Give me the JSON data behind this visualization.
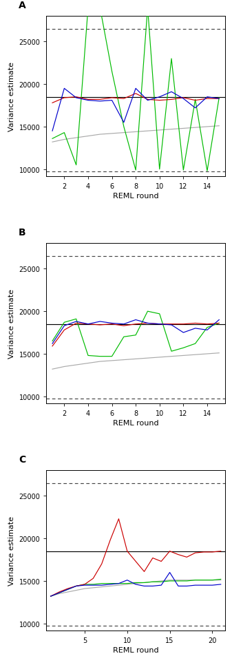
{
  "true_value": 18500,
  "dashed_upper": 26500,
  "dashed_lower": 9700,
  "panel_A": {
    "label": "A",
    "x": [
      1,
      2,
      3,
      4,
      5,
      6,
      7,
      8,
      9,
      10,
      11,
      12,
      13,
      14,
      15
    ],
    "blue": [
      14500,
      19500,
      18400,
      18100,
      18000,
      18100,
      15500,
      19500,
      18100,
      18500,
      19100,
      18300,
      17200,
      18500,
      18300
    ],
    "red": [
      17800,
      18400,
      18500,
      18200,
      18200,
      18400,
      18300,
      18900,
      18200,
      18100,
      18200,
      18400,
      18100,
      18300,
      18300
    ],
    "green": [
      13600,
      14300,
      10500,
      29000,
      29000,
      21500,
      15000,
      9900,
      29000,
      10000,
      23000,
      9900,
      18200,
      9800,
      18400
    ],
    "gray": [
      13200,
      13500,
      13700,
      13900,
      14100,
      14200,
      14300,
      14400,
      14500,
      14600,
      14700,
      14800,
      14900,
      15000,
      15100
    ],
    "xlim": [
      0.5,
      15.5
    ],
    "xticks": [
      2,
      4,
      6,
      8,
      10,
      12,
      14
    ],
    "ylim": [
      9200,
      28000
    ]
  },
  "panel_B": {
    "label": "B",
    "x": [
      1,
      2,
      3,
      4,
      5,
      6,
      7,
      8,
      9,
      10,
      11,
      12,
      13,
      14,
      15
    ],
    "blue": [
      16200,
      18300,
      18800,
      18500,
      18800,
      18600,
      18500,
      19000,
      18600,
      18500,
      18400,
      17500,
      18000,
      17800,
      19000
    ],
    "red": [
      15900,
      17800,
      18600,
      18500,
      18400,
      18500,
      18300,
      18500,
      18600,
      18500,
      18500,
      18500,
      18600,
      18500,
      18600
    ],
    "green": [
      16500,
      18700,
      19100,
      14800,
      14700,
      14700,
      17000,
      17200,
      20000,
      19700,
      15300,
      15700,
      16200,
      18100,
      18600
    ],
    "gray": [
      13200,
      13500,
      13700,
      13900,
      14100,
      14200,
      14300,
      14400,
      14500,
      14600,
      14700,
      14800,
      14900,
      15000,
      15100
    ],
    "xlim": [
      0.5,
      15.5
    ],
    "xticks": [
      2,
      4,
      6,
      8,
      10,
      12,
      14
    ],
    "ylim": [
      9200,
      28000
    ]
  },
  "panel_C": {
    "label": "C",
    "x": [
      1,
      2,
      3,
      4,
      5,
      6,
      7,
      8,
      9,
      10,
      11,
      12,
      13,
      14,
      15,
      16,
      17,
      18,
      19,
      20,
      21
    ],
    "blue": [
      13200,
      13600,
      14000,
      14400,
      14500,
      14500,
      14500,
      14600,
      14700,
      15100,
      14600,
      14400,
      14400,
      14500,
      16000,
      14400,
      14400,
      14500,
      14500,
      14500,
      14600
    ],
    "red": [
      13200,
      13700,
      14100,
      14400,
      14600,
      15300,
      17000,
      19800,
      22300,
      18500,
      17300,
      16100,
      17700,
      17300,
      18500,
      18100,
      17800,
      18300,
      18400,
      18400,
      18500
    ],
    "green": [
      13200,
      13600,
      14000,
      14400,
      14600,
      14600,
      14700,
      14700,
      14700,
      14700,
      14800,
      14800,
      14900,
      14900,
      15000,
      15000,
      15000,
      15100,
      15100,
      15100,
      15200
    ],
    "gray": [
      13200,
      13500,
      13700,
      13900,
      14100,
      14200,
      14300,
      14400,
      14500,
      14600,
      14700,
      14800,
      14900,
      15000,
      15100,
      15100,
      15100,
      15100,
      15100,
      15100,
      15100
    ],
    "xlim": [
      0.5,
      21.5
    ],
    "xticks": [
      5,
      10,
      15,
      20
    ],
    "ylim": [
      9200,
      28000
    ]
  },
  "ylabel": "Variance estimate",
  "xlabel": "REML round",
  "line_colors": {
    "blue": "#0000cc",
    "red": "#cc0000",
    "green": "#00bb00",
    "gray": "#aaaaaa",
    "true": "#000000",
    "dashed": "#444444"
  },
  "linewidth": 0.85,
  "label_fontsize": 8,
  "tick_fontsize": 7,
  "panel_label_fontsize": 10,
  "yticks": [
    10000,
    15000,
    20000,
    25000
  ],
  "ytick_labels": [
    "10000",
    "15000",
    "20000",
    "25000"
  ]
}
